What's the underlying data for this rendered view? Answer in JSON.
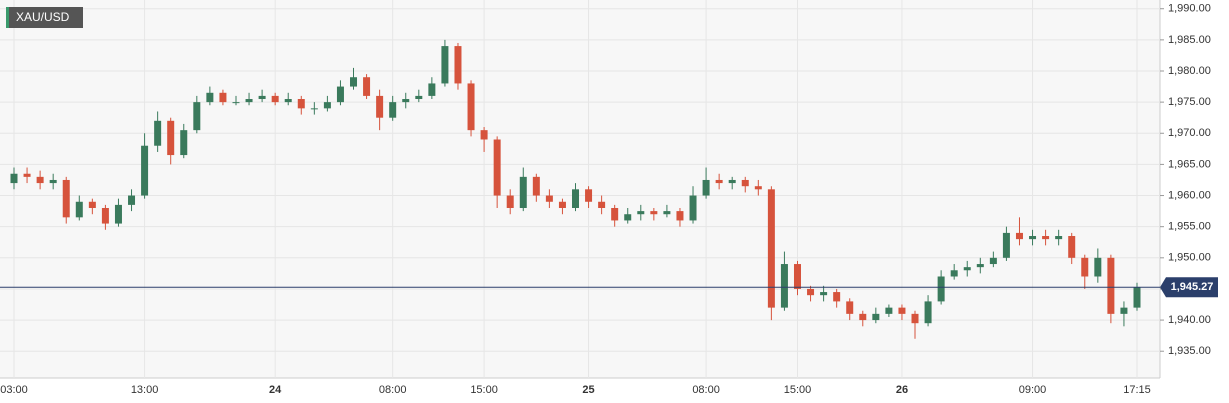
{
  "chart_data": {
    "type": "candlestick",
    "title": "XAU/USD",
    "categories": [
      "03:00",
      null,
      null,
      null,
      null,
      null,
      null,
      null,
      null,
      null,
      "13:00",
      null,
      null,
      null,
      null,
      null,
      null,
      null,
      null,
      null,
      "24",
      null,
      null,
      null,
      null,
      null,
      null,
      null,
      null,
      "08:00",
      null,
      null,
      null,
      null,
      null,
      null,
      "15:00",
      null,
      null,
      null,
      null,
      null,
      null,
      null,
      "25",
      null,
      null,
      null,
      null,
      null,
      null,
      null,
      null,
      "08:00",
      null,
      null,
      null,
      null,
      null,
      null,
      "15:00",
      null,
      null,
      null,
      null,
      null,
      null,
      null,
      "26",
      null,
      null,
      null,
      null,
      null,
      null,
      null,
      null,
      null,
      "09:00",
      null,
      null,
      null,
      null,
      null,
      null,
      null,
      "17:15"
    ],
    "open": [
      1962.0,
      1963.5,
      1963.0,
      1962.0,
      1962.5,
      1956.5,
      1959.0,
      1958.0,
      1955.5,
      1958.5,
      1960.0,
      1968.0,
      1972.0,
      1966.5,
      1970.5,
      1975.0,
      1976.5,
      1975.0,
      1975.0,
      1975.5,
      1976.0,
      1975.0,
      1975.5,
      1974.0,
      1974.0,
      1975.0,
      1977.5,
      1979.0,
      1976.0,
      1972.5,
      1975.0,
      1975.5,
      1976.0,
      1978.0,
      1984.0,
      1978.0,
      1970.5,
      1969.0,
      1960.0,
      1958.0,
      1963.0,
      1960.0,
      1959.0,
      1958.0,
      1961.0,
      1959.0,
      1958.0,
      1956.0,
      1957.0,
      1957.5,
      1957.0,
      1957.5,
      1956.0,
      1960.0,
      1962.5,
      1962.0,
      1962.5,
      1961.5,
      1961.0,
      1942.0,
      1949.0,
      1945.0,
      1944.0,
      1944.5,
      1943.0,
      1941.0,
      1940.0,
      1941.0,
      1942.0,
      1941.0,
      1939.5,
      1943.0,
      1947.0,
      1948.0,
      1948.5,
      1949.0,
      1950.0,
      1954.0,
      1953.0,
      1953.5,
      1953.0,
      1953.5,
      1950.0,
      1947.0,
      1950.0,
      1941.0,
      1942.0
    ],
    "high": [
      1964.5,
      1964.5,
      1964.0,
      1963.5,
      1963.0,
      1960.0,
      1959.5,
      1958.5,
      1959.5,
      1961.0,
      1970.0,
      1973.5,
      1972.5,
      1971.5,
      1976.0,
      1977.5,
      1977.0,
      1976.0,
      1976.5,
      1977.0,
      1976.5,
      1976.5,
      1976.0,
      1975.0,
      1976.0,
      1978.5,
      1980.5,
      1979.5,
      1977.0,
      1976.0,
      1976.5,
      1977.0,
      1979.0,
      1985.0,
      1984.5,
      1978.5,
      1971.0,
      1969.5,
      1961.0,
      1964.5,
      1963.5,
      1961.0,
      1959.5,
      1962.0,
      1961.5,
      1960.0,
      1958.5,
      1958.0,
      1958.5,
      1958.0,
      1958.5,
      1958.0,
      1961.5,
      1964.5,
      1963.5,
      1963.0,
      1963.0,
      1962.5,
      1961.5,
      1951.0,
      1949.5,
      1945.5,
      1945.5,
      1945.0,
      1943.5,
      1941.5,
      1942.0,
      1942.5,
      1942.5,
      1941.5,
      1944.0,
      1948.0,
      1949.0,
      1949.5,
      1950.0,
      1951.0,
      1955.0,
      1956.5,
      1954.5,
      1954.5,
      1954.5,
      1954.0,
      1950.5,
      1951.5,
      1950.5,
      1943.0,
      1946.0
    ],
    "low": [
      1961.0,
      1962.0,
      1961.0,
      1961.0,
      1955.5,
      1956.0,
      1957.0,
      1954.5,
      1955.0,
      1957.5,
      1959.5,
      1967.0,
      1965.0,
      1966.0,
      1970.0,
      1974.5,
      1974.5,
      1974.5,
      1974.5,
      1975.0,
      1974.5,
      1974.5,
      1973.0,
      1973.0,
      1973.5,
      1974.5,
      1977.0,
      1975.5,
      1970.5,
      1972.0,
      1974.0,
      1975.0,
      1975.5,
      1977.5,
      1977.0,
      1969.5,
      1967.0,
      1958.0,
      1957.0,
      1957.5,
      1959.0,
      1958.0,
      1957.0,
      1957.5,
      1958.0,
      1957.0,
      1955.0,
      1955.5,
      1956.0,
      1956.0,
      1956.5,
      1955.0,
      1955.5,
      1959.5,
      1961.0,
      1961.0,
      1960.5,
      1960.0,
      1940.0,
      1941.5,
      1944.0,
      1943.0,
      1943.0,
      1942.0,
      1940.0,
      1939.0,
      1939.5,
      1940.5,
      1940.0,
      1937.0,
      1939.0,
      1942.5,
      1946.5,
      1947.0,
      1947.5,
      1948.5,
      1949.5,
      1952.0,
      1952.0,
      1952.0,
      1952.0,
      1949.0,
      1945.0,
      1946.0,
      1939.5,
      1939.0,
      1941.5
    ],
    "close": [
      1963.5,
      1963.0,
      1962.0,
      1962.5,
      1956.5,
      1959.0,
      1958.0,
      1955.5,
      1958.5,
      1960.0,
      1968.0,
      1972.0,
      1966.5,
      1970.5,
      1975.0,
      1976.5,
      1975.0,
      1975.0,
      1975.5,
      1976.0,
      1975.0,
      1975.5,
      1974.0,
      1974.0,
      1975.0,
      1977.5,
      1979.0,
      1976.0,
      1972.5,
      1975.0,
      1975.5,
      1976.0,
      1978.0,
      1984.0,
      1978.0,
      1970.5,
      1969.0,
      1960.0,
      1958.0,
      1963.0,
      1960.0,
      1959.0,
      1958.0,
      1961.0,
      1959.0,
      1958.0,
      1956.0,
      1957.0,
      1957.5,
      1957.0,
      1957.5,
      1956.0,
      1960.0,
      1962.5,
      1962.0,
      1962.5,
      1961.5,
      1961.0,
      1942.0,
      1949.0,
      1945.0,
      1944.0,
      1944.5,
      1943.0,
      1941.0,
      1940.0,
      1941.0,
      1942.0,
      1941.0,
      1939.5,
      1943.0,
      1947.0,
      1948.0,
      1948.5,
      1949.0,
      1950.0,
      1954.0,
      1953.0,
      1953.5,
      1953.0,
      1953.5,
      1950.0,
      1947.0,
      1950.0,
      1941.0,
      1942.0,
      1945.27
    ],
    "up_color": "#3a7a5c",
    "down_color": "#d6533c",
    "ylim": [
      1930.7,
      1991.4
    ],
    "yticks": [
      {
        "value": 1935,
        "label": "1,935.00"
      },
      {
        "value": 1940,
        "label": "1,940.00"
      },
      {
        "value": 1945,
        "label": "1,945.00"
      },
      {
        "value": 1950,
        "label": "1,950.00"
      },
      {
        "value": 1955,
        "label": "1,955.00"
      },
      {
        "value": 1960,
        "label": "1,960.00"
      },
      {
        "value": 1965,
        "label": "1,965.00"
      },
      {
        "value": 1970,
        "label": "1,970.00"
      },
      {
        "value": 1975,
        "label": "1,975.00"
      },
      {
        "value": 1980,
        "label": "1,980.00"
      },
      {
        "value": 1985,
        "label": "1,985.00"
      },
      {
        "value": 1990,
        "label": "1,990.00"
      }
    ],
    "grid": true,
    "last_price": {
      "value": 1945.27,
      "label": "1,945.27"
    },
    "last_price_color": "#2b3f6b"
  }
}
